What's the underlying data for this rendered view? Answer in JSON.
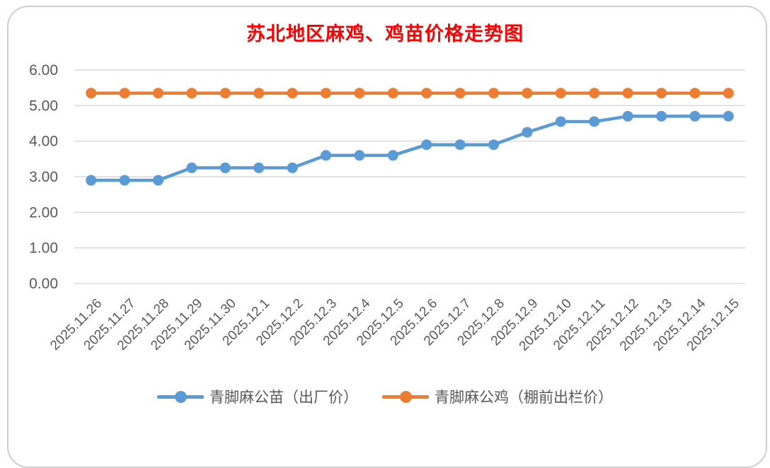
{
  "title": "苏北地区麻鸡、鸡苗价格走势图",
  "chart_data": {
    "type": "line",
    "title": "苏北地区麻鸡、鸡苗价格走势图",
    "categories": [
      "2025.11.26",
      "2025.11.27",
      "2025.11.28",
      "2025.11.29",
      "2025.11.30",
      "2025.12.1",
      "2025.12.2",
      "2025.12.3",
      "2025.12.4",
      "2025.12.5",
      "2025.12.6",
      "2025.12.7",
      "2025.12.8",
      "2025.12.9",
      "2025.12.10",
      "2025.12.11",
      "2025.12.12",
      "2025.12.13",
      "2025.12.14",
      "2025.12.15"
    ],
    "series": [
      {
        "name": "青脚麻公苗（出厂价）",
        "color": "#5B9BD5",
        "values": [
          2.9,
          2.9,
          2.9,
          3.25,
          3.25,
          3.25,
          3.25,
          3.6,
          3.6,
          3.6,
          3.9,
          3.9,
          3.9,
          4.25,
          4.55,
          4.55,
          4.7,
          4.7,
          4.7,
          4.7
        ]
      },
      {
        "name": "青脚麻公鸡（棚前出栏价）",
        "color": "#ED7D31",
        "values": [
          5.35,
          5.35,
          5.35,
          5.35,
          5.35,
          5.35,
          5.35,
          5.35,
          5.35,
          5.35,
          5.35,
          5.35,
          5.35,
          5.35,
          5.35,
          5.35,
          5.35,
          5.35,
          5.35,
          5.35
        ]
      }
    ],
    "ylim": [
      0,
      6
    ],
    "ytick_step": 1,
    "ytick_labels": [
      "0.00",
      "1.00",
      "2.00",
      "3.00",
      "4.00",
      "5.00",
      "6.00"
    ],
    "grid": true,
    "gridline_color": "#D9D9D9",
    "axis_text_color": "#595959",
    "title_color": "#FF0000",
    "legend_position": "bottom",
    "x_label_rotation": -45
  }
}
